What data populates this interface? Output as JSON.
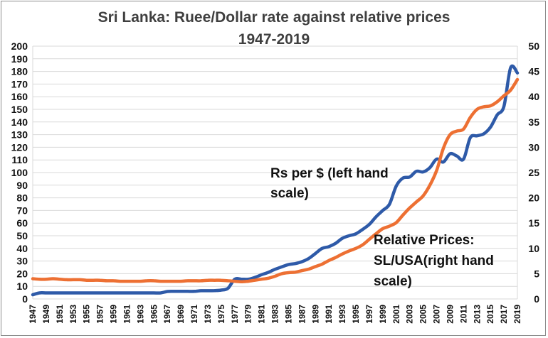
{
  "chart_data": {
    "type": "line",
    "title": [
      "Sri Lanka: Ruee/Dollar rate against relative prices",
      "1947-2019"
    ],
    "ylim_left": [
      0,
      200
    ],
    "yticks_left": [
      "0",
      "10",
      "20",
      "30",
      "40",
      "50",
      "60",
      "70",
      "80",
      "90",
      "100",
      "110",
      "120",
      "130",
      "140",
      "150",
      "160",
      "170",
      "180",
      "190",
      "200"
    ],
    "ylim_right": [
      0,
      50
    ],
    "yticks_right": [
      "0",
      "5",
      "10",
      "15",
      "20",
      "25",
      "30",
      "35",
      "40",
      "45",
      "50"
    ],
    "xlim": [
      1947,
      2019
    ],
    "xticks": [
      "1947",
      "1949",
      "1951",
      "1953",
      "1955",
      "1957",
      "1959",
      "1961",
      "1963",
      "1965",
      "1967",
      "1969",
      "1971",
      "1973",
      "1975",
      "1977",
      "1979",
      "1981",
      "1983",
      "1985",
      "1987",
      "1989",
      "1991",
      "1993",
      "1995",
      "1997",
      "1999",
      "2001",
      "2003",
      "2005",
      "2007",
      "2009",
      "2011",
      "2013",
      "2015",
      "2017",
      "2019"
    ],
    "grid": true,
    "annotations": [
      {
        "lines": [
          "Rs per $ (left hand",
          "scale)"
        ],
        "series": "Rs per $"
      },
      {
        "lines": [
          "Relative Prices:",
          "SL/USA(right hand",
          "scale)"
        ],
        "series": "Relative Prices"
      }
    ],
    "series": [
      {
        "axis": "left",
        "color": "#2e5aa8",
        "x": [
          1947,
          1948,
          1949,
          1950,
          1951,
          1952,
          1953,
          1954,
          1955,
          1956,
          1957,
          1958,
          1959,
          1960,
          1961,
          1962,
          1963,
          1964,
          1965,
          1966,
          1967,
          1968,
          1969,
          1970,
          1971,
          1972,
          1973,
          1974,
          1975,
          1976,
          1977,
          1978,
          1979,
          1980,
          1981,
          1982,
          1983,
          1984,
          1985,
          1986,
          1987,
          1988,
          1989,
          1990,
          1991,
          1992,
          1993,
          1994,
          1995,
          1996,
          1997,
          1998,
          1999,
          2000,
          2001,
          2002,
          2003,
          2004,
          2005,
          2006,
          2007,
          2008,
          2009,
          2010,
          2011,
          2012,
          2013,
          2014,
          2015,
          2016,
          2017,
          2018,
          2019
        ],
        "values": [
          3.3,
          4.8,
          4.8,
          4.8,
          4.8,
          4.8,
          4.8,
          4.8,
          4.8,
          4.8,
          4.8,
          4.8,
          4.8,
          4.8,
          4.8,
          4.8,
          4.8,
          4.8,
          4.8,
          4.8,
          5.9,
          6.0,
          6.0,
          6.0,
          6.0,
          6.5,
          6.5,
          6.6,
          7.0,
          8.4,
          15.6,
          15.6,
          15.6,
          17.0,
          19.2,
          21.0,
          23.5,
          25.4,
          27.2,
          28.0,
          29.5,
          32.0,
          36.0,
          40.0,
          41.4,
          44.0,
          48.0,
          50.0,
          51.5,
          55.0,
          59.0,
          65.0,
          70.0,
          75.0,
          89.4,
          95.7,
          96.5,
          101.0,
          100.5,
          103.9,
          110.6,
          108.3,
          114.9,
          113.1,
          110.6,
          127.6,
          129.1,
          130.6,
          135.9,
          145.6,
          152.4,
          183.0,
          178.8
        ]
      },
      {
        "axis": "right",
        "color": "#ed7033",
        "x": [
          1947,
          1948,
          1949,
          1950,
          1951,
          1952,
          1953,
          1954,
          1955,
          1956,
          1957,
          1958,
          1959,
          1960,
          1961,
          1962,
          1963,
          1964,
          1965,
          1966,
          1967,
          1968,
          1969,
          1970,
          1971,
          1972,
          1973,
          1974,
          1975,
          1976,
          1977,
          1978,
          1979,
          1980,
          1981,
          1982,
          1983,
          1984,
          1985,
          1986,
          1987,
          1988,
          1989,
          1990,
          1991,
          1992,
          1993,
          1994,
          1995,
          1996,
          1997,
          1998,
          1999,
          2000,
          2001,
          2002,
          2003,
          2004,
          2005,
          2006,
          2007,
          2008,
          2009,
          2010,
          2011,
          2012,
          2013,
          2014,
          2015,
          2016,
          2017,
          2018,
          2019
        ],
        "values": [
          4.0,
          3.9,
          3.9,
          4.0,
          3.9,
          3.8,
          3.8,
          3.8,
          3.7,
          3.7,
          3.7,
          3.6,
          3.6,
          3.5,
          3.5,
          3.5,
          3.5,
          3.6,
          3.6,
          3.5,
          3.5,
          3.5,
          3.5,
          3.6,
          3.6,
          3.6,
          3.7,
          3.7,
          3.7,
          3.6,
          3.5,
          3.4,
          3.5,
          3.7,
          3.9,
          4.1,
          4.5,
          5.0,
          5.2,
          5.3,
          5.6,
          5.9,
          6.4,
          6.9,
          7.6,
          8.2,
          8.9,
          9.5,
          10.0,
          10.7,
          11.8,
          12.9,
          13.9,
          14.4,
          15.1,
          16.6,
          18.0,
          19.2,
          20.4,
          22.5,
          25.4,
          29.8,
          32.5,
          33.2,
          33.6,
          35.9,
          37.5,
          38.0,
          38.2,
          39.0,
          40.2,
          41.3,
          43.4
        ]
      }
    ]
  }
}
